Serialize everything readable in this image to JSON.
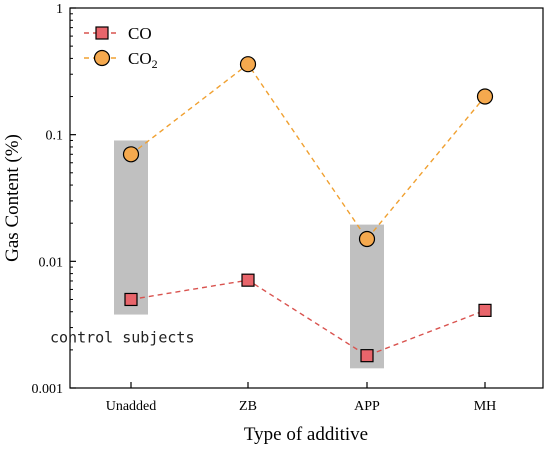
{
  "chart_data": {
    "type": "line",
    "xlabel": "Type of additive",
    "ylabel": "Gas Content (%)",
    "yscale": "log",
    "ylim": [
      0.001,
      1
    ],
    "yticks": [
      0.001,
      0.01,
      0.1,
      1
    ],
    "ytick_labels": [
      "0.001",
      "0.01",
      "0.1",
      "1"
    ],
    "categories": [
      "Unadded",
      "ZB",
      "APP",
      "MH"
    ],
    "series": [
      {
        "name": "CO",
        "values": [
          0.005,
          0.0071,
          0.0018,
          0.0041
        ],
        "line_color": "#d9534f",
        "line_style": "dashed",
        "marker": "square",
        "marker_color": "#e8656b"
      },
      {
        "name": "CO",
        "name_subscript": "2",
        "values": [
          0.07,
          0.36,
          0.015,
          0.2
        ],
        "line_color": "#f0a030",
        "line_style": "dashed",
        "marker": "circle",
        "marker_color": "#f5a94e"
      }
    ],
    "highlight_boxes": [
      {
        "category": "Unadded",
        "ymin": 0.0038,
        "ymax": 0.09,
        "color": "#c0c0c0"
      },
      {
        "category": "APP",
        "ymin": 0.00143,
        "ymax": 0.0195,
        "color": "#c0c0c0"
      }
    ],
    "annotations": [
      {
        "text": "control subjects",
        "x": "Unadded",
        "y": 0.0025
      }
    ],
    "legend_position": "top-left",
    "grid": false
  }
}
